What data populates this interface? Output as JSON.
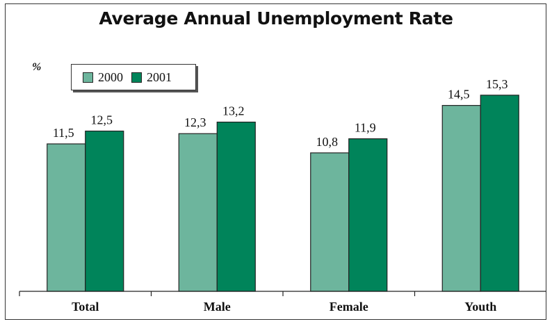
{
  "chart_data": {
    "type": "bar",
    "title": "Average Annual Unemployment Rate",
    "ylabel": "%",
    "categories": [
      "Total",
      "Male",
      "Female",
      "Youth"
    ],
    "series": [
      {
        "name": "2000",
        "values": [
          11.5,
          12.3,
          10.8,
          14.5
        ],
        "labels": [
          "11,5",
          "12,3",
          "10,8",
          "14,5"
        ],
        "color": "#6db59d"
      },
      {
        "name": "2001",
        "values": [
          12.5,
          13.2,
          11.9,
          15.3
        ],
        "labels": [
          "12,5",
          "13,2",
          "11,9",
          "15,3"
        ],
        "color": "#00845a"
      }
    ],
    "ylim": [
      0,
      17.3
    ],
    "grid": false,
    "legend_position": "top-left"
  }
}
